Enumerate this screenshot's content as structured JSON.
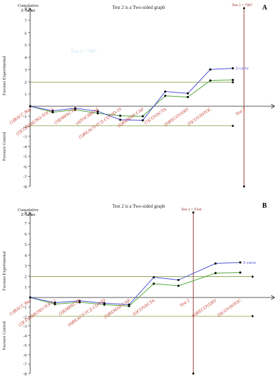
{
  "colors": {
    "z_curve": "#4f4fd9",
    "green_line": "#4fa83a",
    "boundary": "#8b1a1a",
    "axis": "#222222",
    "ci_line": "#6b8e23",
    "label_red": "#c0392b",
    "mark_black": "#111111"
  },
  "chart_data": [
    {
      "panel": "A",
      "type": "line",
      "title": "Test 2 is a Two-sided graph",
      "ylabel": "Cumulative Z-Score",
      "favours_top": "Favours Experimental",
      "favours_bottom": "Favours Control",
      "ylim": [
        -8,
        8
      ],
      "yticks": [
        -8,
        -7,
        -6,
        -5,
        -4,
        -3,
        -2,
        -1,
        1,
        2,
        3,
        4,
        5,
        6,
        7,
        8
      ],
      "categories": [
        "(1)BACC Bay",
        "(2)CORIMUNO-TOCI 1",
        "(3)EMPACTA",
        "(4)TOCIBRAS",
        "(5)REACT-TCZ-COVID-19",
        "(6)REMAP-CAP",
        "(7)COVACTA",
        "(8)RECOVERY",
        "(9)COVINTOC",
        "Test 2"
      ],
      "series": [
        {
          "name": "Z-curve",
          "key": "z",
          "x": [
            0,
            1,
            2,
            3,
            4,
            5,
            6,
            7,
            8,
            9
          ],
          "values": [
            0,
            -0.45,
            -0.2,
            -0.5,
            -1.35,
            -1.4,
            1.2,
            1.05,
            3.0,
            3.1
          ]
        },
        {
          "key": "green",
          "x": [
            0,
            1,
            2,
            3,
            4,
            5,
            6,
            7,
            8,
            9
          ],
          "values": [
            0,
            -0.6,
            -0.35,
            -0.7,
            -0.95,
            -1.0,
            0.85,
            0.75,
            2.1,
            2.15
          ]
        }
      ],
      "ci_upper": 1.96,
      "ci_lower": -1.96,
      "boundary_label": "Test 2 = 7987",
      "boundary_x": 9.5,
      "curve_label": "Z-curve",
      "watermark": "Test 2 = 7987"
    },
    {
      "panel": "B",
      "type": "line",
      "title": "Test 2 is a Two-sided graph",
      "ylabel": "Cumulative Z-Score",
      "favours_top": "Favours Experimental",
      "favours_bottom": "Favours Control",
      "ylim": [
        -8,
        8
      ],
      "yticks": [
        -8,
        -7,
        -6,
        -5,
        -4,
        -3,
        -2,
        -1,
        1,
        2,
        3,
        4,
        5,
        6,
        7,
        8
      ],
      "categories": [
        "(1)BACC Bay",
        "(2)CORIMUNO-TOCI 1",
        "(3)EMPACTA",
        "(4)REACT-TCZ-COVID",
        "(5)REMAP-CAP",
        "(6)COVACTA",
        "Test 2",
        "(8)RECOVERY",
        "(9)COVINTOC"
      ],
      "series": [
        {
          "name": "Z-curve",
          "key": "z",
          "x": [
            0,
            1,
            2,
            3,
            4,
            5,
            6,
            7.5,
            8.5
          ],
          "values": [
            0,
            -0.55,
            -0.35,
            -0.6,
            -0.75,
            1.9,
            1.65,
            3.2,
            3.3
          ]
        },
        {
          "key": "green",
          "x": [
            0,
            1,
            2,
            3,
            4,
            5,
            6,
            7.5,
            8.5
          ],
          "values": [
            0,
            -0.7,
            -0.5,
            -0.75,
            -0.9,
            1.3,
            1.1,
            2.3,
            2.35
          ]
        }
      ],
      "ci_upper": 1.96,
      "ci_lower": -1.96,
      "boundary_label": "Test 2 = 2504",
      "boundary_x": 6.6,
      "curve_label": "Z-curve"
    }
  ]
}
